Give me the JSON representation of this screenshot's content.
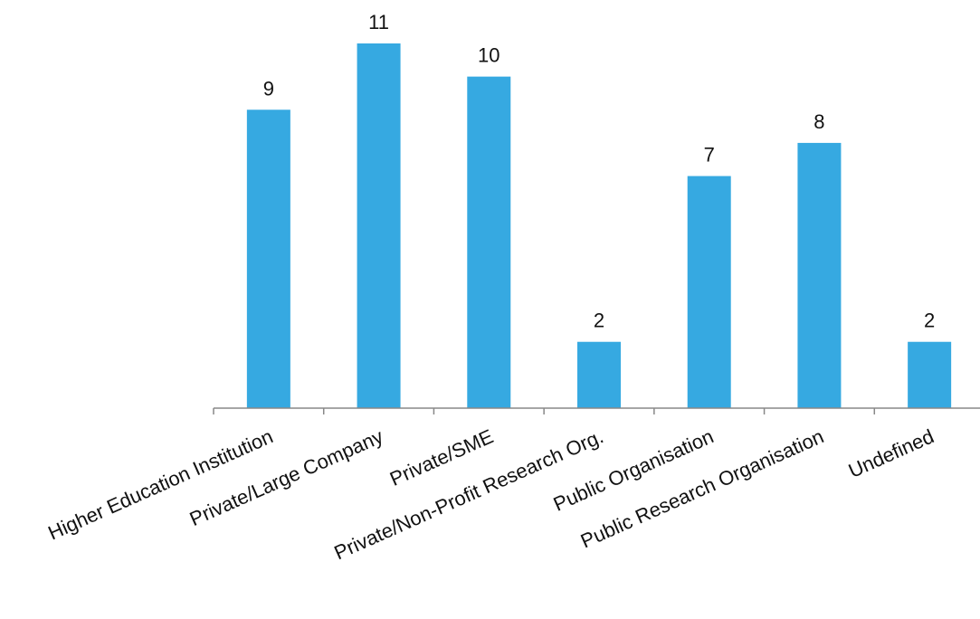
{
  "chart_data": {
    "type": "bar",
    "categories": [
      "Higher Education Institution",
      "Private/Large Company",
      "Private/SME",
      "Private/Non-Profit Research Org.",
      "Public Organisation",
      "Public Research Organisation",
      "Undefined"
    ],
    "values": [
      9,
      11,
      10,
      2,
      7,
      8,
      2
    ],
    "ylim": [
      0,
      11
    ],
    "bar_color": "#36A9E1",
    "axis_color": "#888888",
    "grid": false,
    "legend": "none",
    "data_labels": true
  }
}
